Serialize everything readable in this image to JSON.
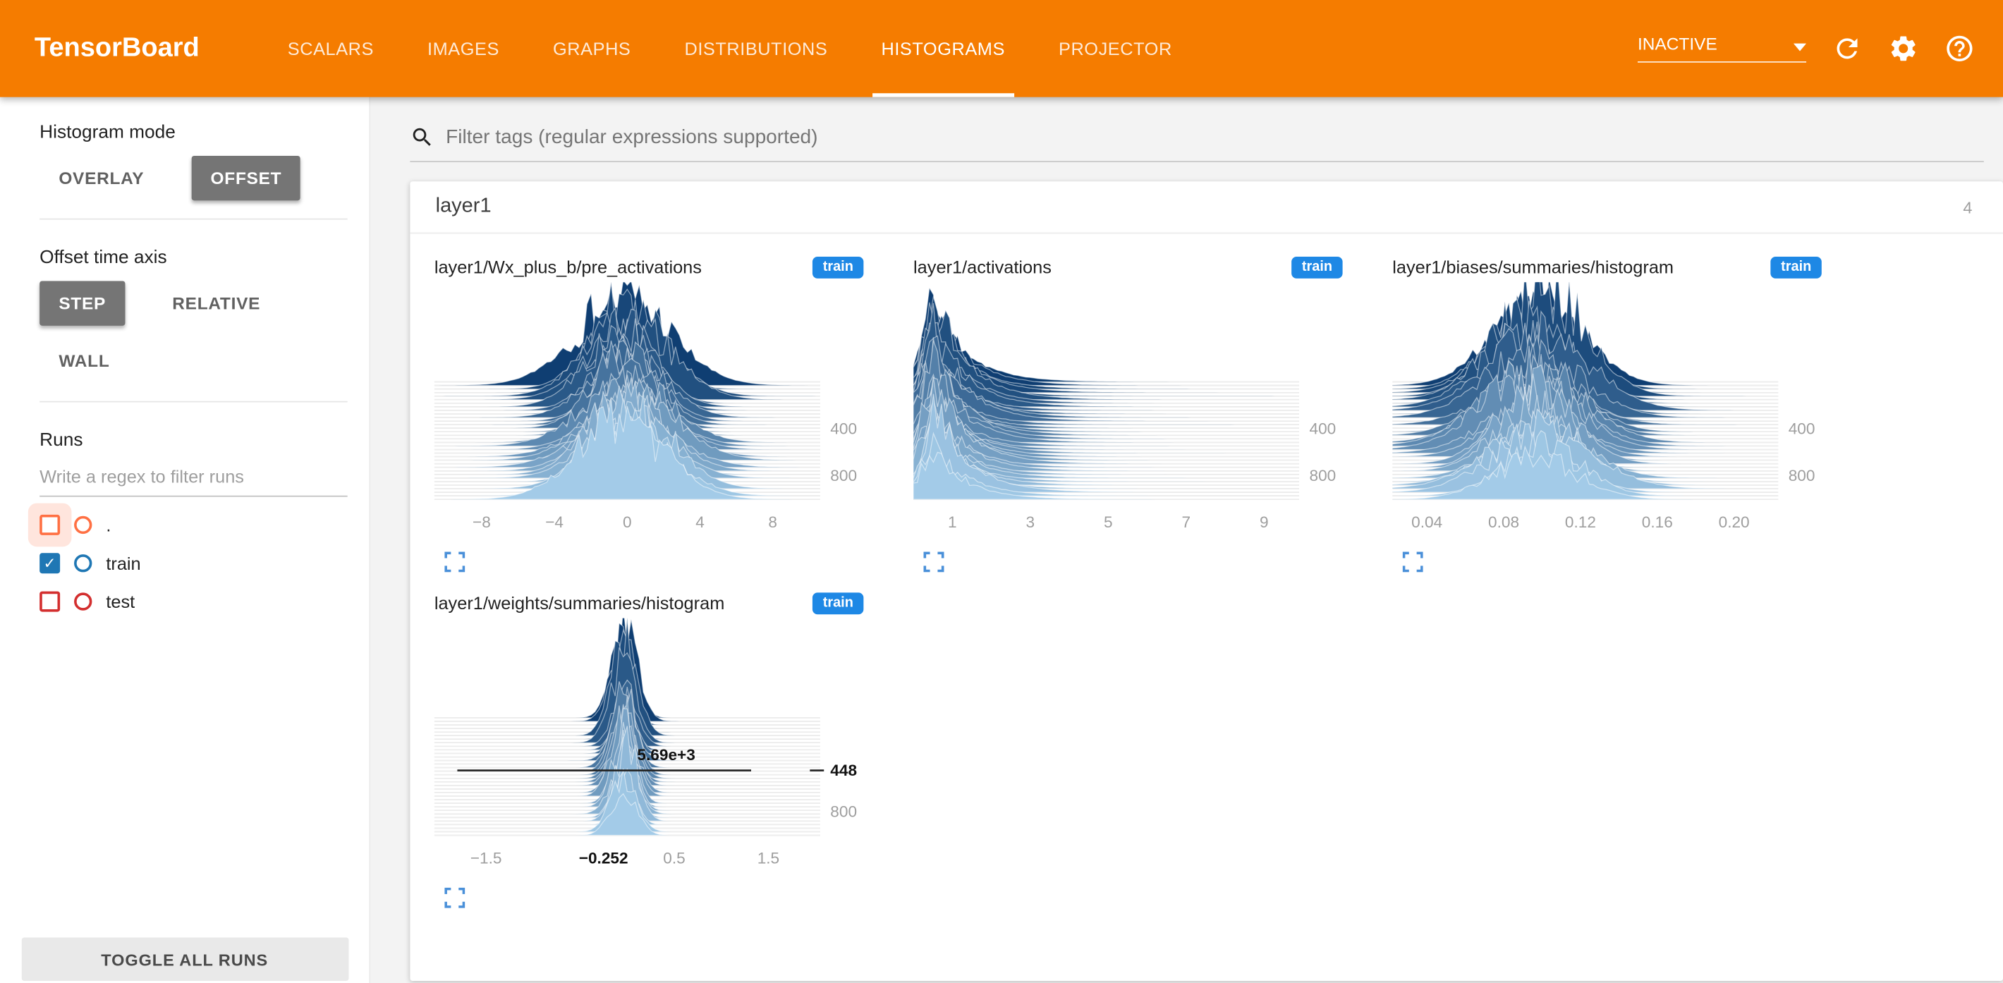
{
  "colors": {
    "header": "#f57c00",
    "badge": "#1e88e5",
    "expand_icon": "#4a90d9",
    "ridge_dark": "#0a3a6e",
    "ridge_light": "#a3cbe8"
  },
  "header": {
    "title": "TensorBoard",
    "tabs": [
      {
        "label": "SCALARS",
        "active": false
      },
      {
        "label": "IMAGES",
        "active": false
      },
      {
        "label": "GRAPHS",
        "active": false
      },
      {
        "label": "DISTRIBUTIONS",
        "active": false
      },
      {
        "label": "HISTOGRAMS",
        "active": true
      },
      {
        "label": "PROJECTOR",
        "active": false
      }
    ],
    "status": {
      "value": "INACTIVE"
    },
    "icons": [
      {
        "name": "refresh-icon"
      },
      {
        "name": "settings-icon"
      },
      {
        "name": "help-icon"
      }
    ]
  },
  "sidebar": {
    "histogram_mode": {
      "label": "Histogram mode",
      "options": [
        {
          "label": "OVERLAY",
          "selected": false
        },
        {
          "label": "OFFSET",
          "selected": true
        }
      ]
    },
    "offset_time_axis": {
      "label": "Offset time axis",
      "options": [
        {
          "label": "STEP",
          "selected": true
        },
        {
          "label": "RELATIVE",
          "selected": false
        },
        {
          "label": "WALL",
          "selected": false
        }
      ]
    },
    "runs": {
      "label": "Runs",
      "filter_placeholder": "Write a regex to filter runs",
      "items": [
        {
          "label": ".",
          "checked": false,
          "color": "#ff7043",
          "halo": true
        },
        {
          "label": "train",
          "checked": true,
          "color": "#1f77b4",
          "halo": false
        },
        {
          "label": "test",
          "checked": false,
          "color": "#d32f2f",
          "halo": false
        }
      ],
      "toggle_all_label": "TOGGLE ALL RUNS"
    }
  },
  "main": {
    "filter_placeholder": "Filter tags (regular expressions supported)",
    "group": {
      "title": "layer1",
      "count": "4"
    }
  },
  "chart_data": [
    {
      "type": "area",
      "subtype": "offset-histogram-ridgeline",
      "title": "layer1/Wx_plus_b/pre_activations",
      "run": "train",
      "x_domain": [
        -10.6,
        10.6
      ],
      "x_ticks": [
        {
          "v": -8,
          "label": "−8"
        },
        {
          "v": -4,
          "label": "−4"
        },
        {
          "v": 0,
          "label": "0"
        },
        {
          "v": 4,
          "label": "4"
        },
        {
          "v": 8,
          "label": "8"
        }
      ],
      "step_domain": [
        0,
        1000
      ],
      "right_ticks": [
        {
          "step": 400,
          "label": "400"
        },
        {
          "step": 800,
          "label": "800"
        }
      ],
      "center": 0,
      "sigma": 2.0,
      "tail": 0,
      "height": 58,
      "top_boost": 1.3,
      "seed": 7,
      "num_ridges": 34
    },
    {
      "type": "area",
      "subtype": "offset-histogram-ridgeline",
      "title": "layer1/activations",
      "run": "train",
      "x_domain": [
        0,
        9.9
      ],
      "x_ticks": [
        {
          "v": 1,
          "label": "1"
        },
        {
          "v": 3,
          "label": "3"
        },
        {
          "v": 5,
          "label": "5"
        },
        {
          "v": 7,
          "label": "7"
        },
        {
          "v": 9,
          "label": "9"
        }
      ],
      "step_domain": [
        0,
        1000
      ],
      "right_ticks": [
        {
          "step": 400,
          "label": "400"
        },
        {
          "step": 800,
          "label": "800"
        }
      ],
      "center": 0.55,
      "sigma": 0.3,
      "tail": 0.85,
      "height": 64,
      "top_boost": 1.15,
      "seed": 11,
      "num_ridges": 34
    },
    {
      "type": "area",
      "subtype": "offset-histogram-ridgeline",
      "title": "layer1/biases/summaries/histogram",
      "run": "train",
      "x_domain": [
        0.022,
        0.223
      ],
      "x_ticks": [
        {
          "v": 0.04,
          "label": "0.04"
        },
        {
          "v": 0.08,
          "label": "0.08"
        },
        {
          "v": 0.12,
          "label": "0.12"
        },
        {
          "v": 0.16,
          "label": "0.16"
        },
        {
          "v": 0.2,
          "label": "0.20"
        }
      ],
      "step_domain": [
        0,
        1000
      ],
      "right_ticks": [
        {
          "step": 400,
          "label": "400"
        },
        {
          "step": 800,
          "label": "800"
        }
      ],
      "center": 0.096,
      "sigma": 0.021,
      "tail": 0,
      "height": 56,
      "top_boost": 1.5,
      "seed": 23,
      "num_ridges": 34
    },
    {
      "type": "area",
      "subtype": "offset-histogram-ridgeline",
      "title": "layer1/weights/summaries/histogram",
      "run": "train",
      "x_domain": [
        -2.05,
        2.05
      ],
      "x_ticks": [
        {
          "v": -1.5,
          "label": "−1.5"
        },
        {
          "v": 0.5,
          "label": "0.5"
        },
        {
          "v": 1.5,
          "label": "1.5"
        }
      ],
      "x_highlight": {
        "v": -0.252,
        "label": "−0.252"
      },
      "step_domain": [
        0,
        1000
      ],
      "right_ticks": [
        {
          "step": 800,
          "label": "800"
        }
      ],
      "highlight": {
        "step": 448,
        "step_label": "448",
        "value_label": "5.69e+3"
      },
      "center": -0.03,
      "sigma": 0.11,
      "tail": 0,
      "height": 60,
      "top_boost": 1.25,
      "seed": 5,
      "num_ridges": 34
    }
  ]
}
